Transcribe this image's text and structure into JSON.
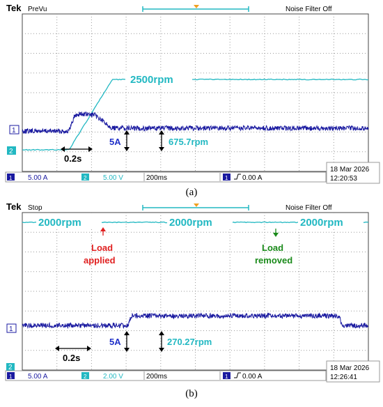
{
  "panels": [
    {
      "caption": "(a)",
      "brand": "Tek",
      "mode": "PreVu",
      "noise_filter": "Noise Filter Off",
      "ch1_marker": "1",
      "ch2_marker": "2",
      "status": {
        "ch1_scale": "5.00 A",
        "ch2_scale": "5.00 V",
        "timebase": "200ms",
        "trigger": "0.00 A",
        "date": "18 Mar  2026",
        "time": "12:20:53"
      },
      "colors": {
        "ch1": "#1a1aa0",
        "ch2": "#22b8c2",
        "label_ch1": "#2030c8",
        "label_ch2": "#22b8c2"
      },
      "annotations": {
        "speed": "2500rpm",
        "current_scale": "5A",
        "speed_scale": "675.7rpm",
        "time_scale": "0.2s"
      }
    },
    {
      "caption": "(b)",
      "brand": "Tek",
      "mode": "Stop",
      "noise_filter": "Noise Filter Off",
      "ch1_marker": "1",
      "ch2_marker": "2",
      "status": {
        "ch1_scale": "5.00 A",
        "ch2_scale": "2.00 V",
        "timebase": "200ms",
        "trigger": "0.00 A",
        "date": "18 Mar  2026",
        "time": "12:26:41"
      },
      "colors": {
        "ch1": "#1a1aa0",
        "ch2": "#22b8c2",
        "label_ch1": "#2030c8",
        "label_ch2": "#22b8c2",
        "load_applied": "#e02020",
        "load_removed": "#1a8a1a"
      },
      "annotations": {
        "speed_left": "2000rpm",
        "speed_mid": "2000rpm",
        "speed_right": "2000rpm",
        "load_applied": "Load applied",
        "load_removed": "Load removed",
        "current_scale": "5A",
        "speed_scale": "270.27rpm",
        "time_scale": "0.2s"
      }
    }
  ],
  "chart_data": [
    {
      "type": "line",
      "x_unit": "s",
      "x_range": [
        0,
        2.0
      ],
      "divisions": {
        "x": 10,
        "y": 8
      },
      "series": [
        {
          "name": "",
          "channel": "CH1",
          "unit": "A",
          "x": [
            0,
            0.27,
            0.3,
            0.33,
            0.42,
            0.52,
            2.0
          ],
          "y": [
            1.4,
            1.4,
            6.4,
            7.3,
            6.8,
            2.4,
            2.4
          ]
        },
        {
          "name": "",
          "channel": "CH2",
          "unit": "rpm",
          "x": [
            0,
            0.27,
            0.52,
            2.0
          ],
          "y": [
            0,
            0,
            2500,
            2500
          ]
        }
      ]
    },
    {
      "type": "line",
      "x_unit": "s",
      "x_range": [
        0,
        2.0
      ],
      "divisions": {
        "x": 10,
        "y": 8
      },
      "series": [
        {
          "name": "",
          "channel": "CH1",
          "unit": "A",
          "x": [
            0,
            0.61,
            0.63,
            1.83,
            1.85,
            2.0
          ],
          "y": [
            0,
            0,
            3.2,
            3.2,
            0,
            0
          ]
        },
        {
          "name": "",
          "channel": "CH2",
          "unit": "rpm",
          "x": [
            0,
            2.0
          ],
          "y": [
            2000,
            2000
          ]
        }
      ]
    }
  ]
}
